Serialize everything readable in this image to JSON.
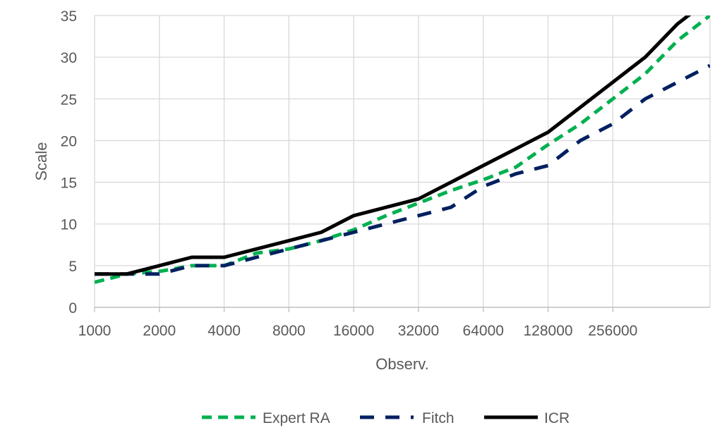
{
  "chart_data": {
    "type": "line",
    "title": "",
    "xlabel": "Observ.",
    "ylabel": "Scale",
    "x_scale": "log2",
    "x_tick_labels": [
      "1000",
      "2000",
      "4000",
      "8000",
      "16000",
      "32000",
      "64000",
      "128000",
      "256000"
    ],
    "xlim": [
      1000,
      724000
    ],
    "ylim": [
      0,
      35
    ],
    "y_ticks": [
      0,
      5,
      10,
      15,
      20,
      25,
      30,
      35
    ],
    "grid": true,
    "legend_position": "bottom",
    "x": [
      1000,
      1414,
      2000,
      2828,
      4000,
      5657,
      8000,
      11314,
      16000,
      22627,
      32000,
      45255,
      64000,
      90510,
      128000,
      181019,
      256000,
      362039,
      512000,
      724077
    ],
    "series": [
      {
        "name": "Expert RA",
        "color": "#00B050",
        "dash": "dashed",
        "values": [
          3,
          4,
          4.3,
          5,
          5,
          6.5,
          7,
          8,
          9.3,
          11,
          12.5,
          14,
          15.3,
          16.8,
          19.5,
          22,
          25,
          28,
          32,
          35
        ]
      },
      {
        "name": "Fitch",
        "color": "#002060",
        "dash": "long-dashed",
        "values": [
          4,
          4,
          4,
          5,
          5,
          6,
          7,
          8,
          9,
          10,
          11,
          12,
          14.5,
          16,
          17,
          20,
          22,
          25,
          27,
          29
        ]
      },
      {
        "name": "ICR",
        "color": "#000000",
        "dash": "solid",
        "values": [
          4,
          4,
          5,
          6,
          6,
          7,
          8,
          9,
          11,
          12,
          13,
          15,
          17,
          19,
          21,
          24,
          27,
          30,
          34,
          37
        ]
      }
    ]
  }
}
